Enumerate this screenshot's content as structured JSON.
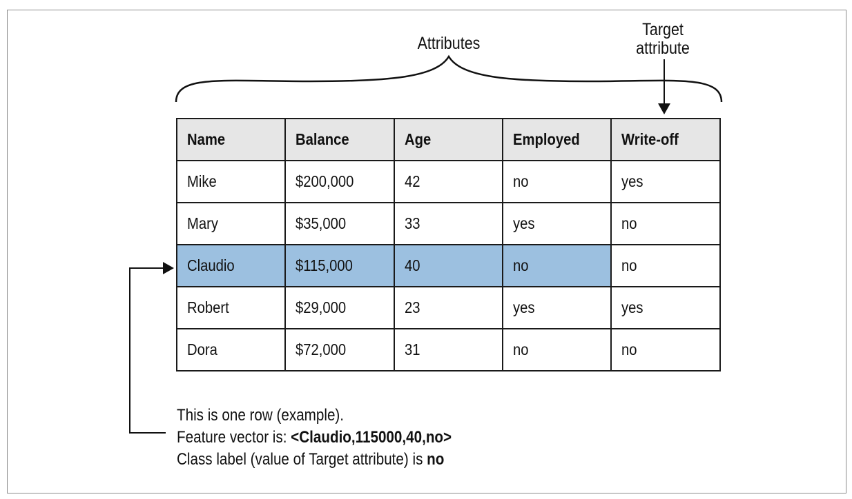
{
  "labels": {
    "attributes": "Attributes",
    "target_line1": "Target",
    "target_line2": "attribute"
  },
  "table": {
    "headers": [
      "Name",
      "Balance",
      "Age",
      "Employed",
      "Write-off"
    ],
    "rows": [
      [
        "Mike",
        "$200,000",
        "42",
        "no",
        "yes"
      ],
      [
        "Mary",
        "$35,000",
        "33",
        "yes",
        "no"
      ],
      [
        "Claudio",
        "$115,000",
        "40",
        "no",
        "no"
      ],
      [
        "Robert",
        "$29,000",
        "23",
        "yes",
        "yes"
      ],
      [
        "Dora",
        "$72,000",
        "31",
        "no",
        "no"
      ]
    ],
    "highlighted_row": 2,
    "highlight_color": "#9cc0e0",
    "header_color": "#e6e6e6"
  },
  "caption": {
    "line1": "This is one row (example).",
    "line2_prefix": "Feature vector is: ",
    "line2_bold": "<Claudio,115000,40,no>",
    "line3_prefix": "Class label (value of Target attribute) is ",
    "line3_bold": "no"
  }
}
